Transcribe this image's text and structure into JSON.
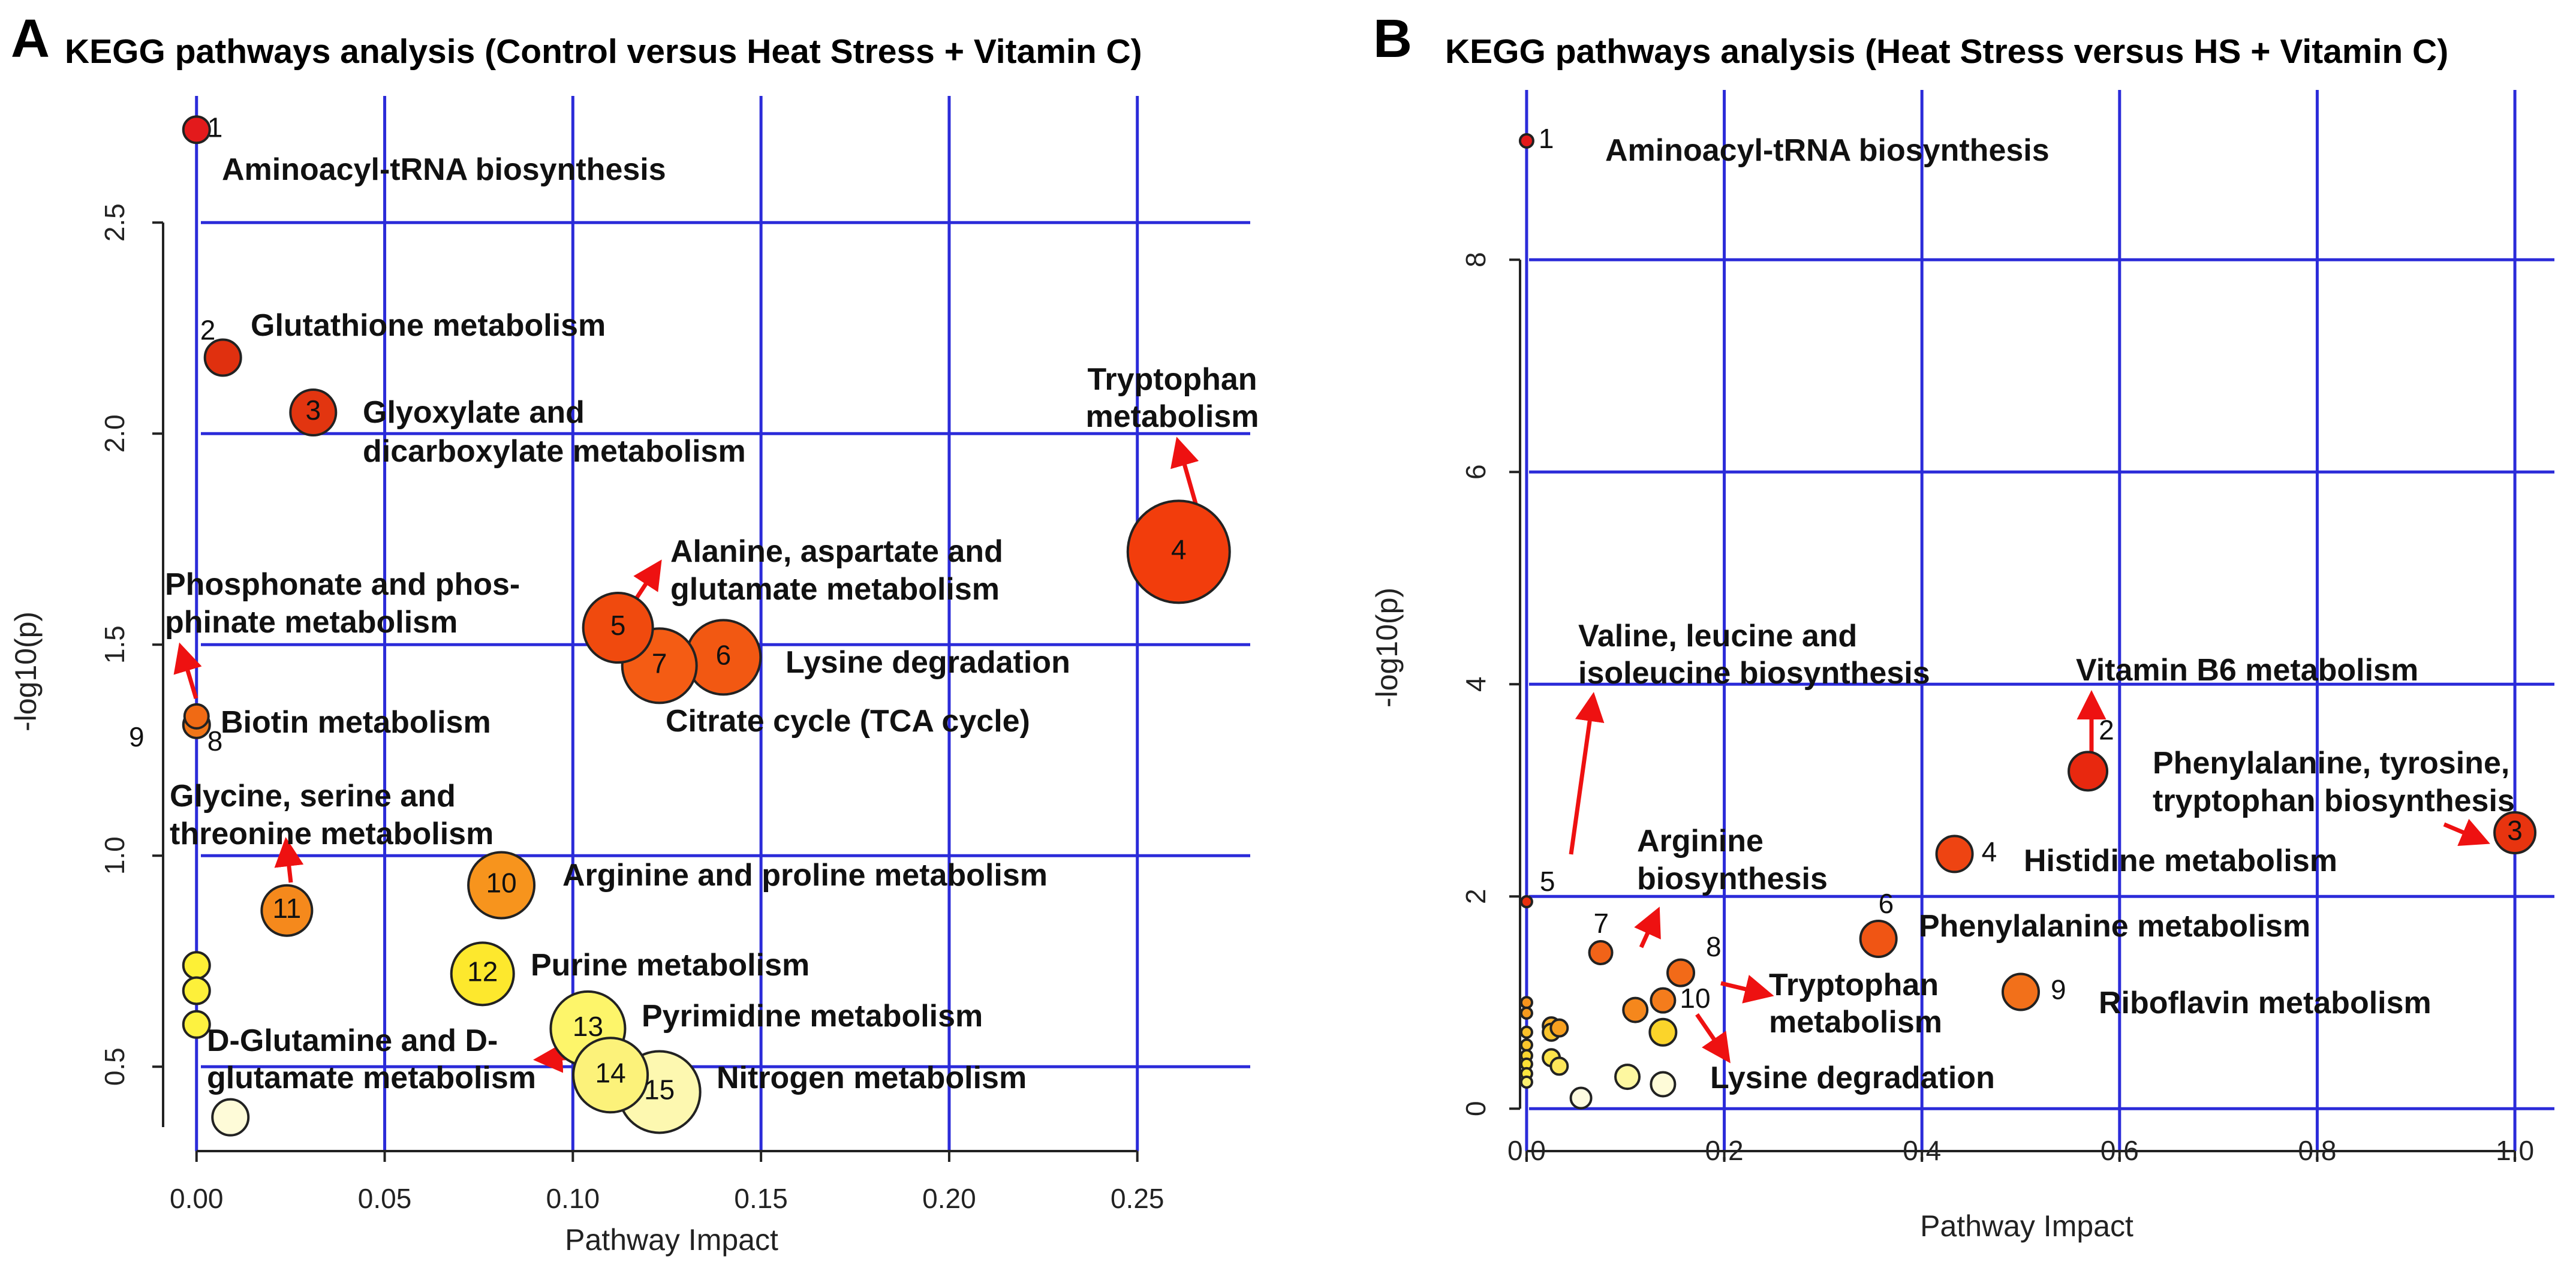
{
  "chart_data": [
    {
      "type": "scatter",
      "panel": "A",
      "title": "KEGG pathways analysis (Control versus Heat Stress + Vitamin C)",
      "xlabel": "Pathway Impact",
      "ylabel": "-log10(p)",
      "xlim": [
        -0.01,
        0.28
      ],
      "ylim": [
        0.3,
        2.8
      ],
      "xticks": [
        0.0,
        0.05,
        0.1,
        0.15,
        0.2,
        0.25
      ],
      "xtick_labels": [
        "0.00",
        "0.05",
        "0.10",
        "0.15",
        "0.20",
        "0.25"
      ],
      "yticks": [
        0.5,
        1.0,
        1.5,
        2.0,
        2.5
      ],
      "ytick_labels": [
        "0.5",
        "1.0",
        "1.5",
        "2.0",
        "2.5"
      ],
      "grid": true,
      "points": [
        {
          "x": 0.0,
          "y": 2.72,
          "r": 22,
          "color": "#e31a1c",
          "number": "1"
        },
        {
          "x": 0.007,
          "y": 2.18,
          "r": 30,
          "color": "#e0300f",
          "number": "2"
        },
        {
          "x": 0.031,
          "y": 2.05,
          "r": 38,
          "color": "#e23510",
          "number": "3"
        },
        {
          "x": 0.261,
          "y": 1.72,
          "r": 85,
          "color": "#f23d0c",
          "number": "4"
        },
        {
          "x": 0.112,
          "y": 1.54,
          "r": 58,
          "color": "#f04a0e",
          "number": "5"
        },
        {
          "x": 0.14,
          "y": 1.47,
          "r": 62,
          "color": "#f25812",
          "number": "6"
        },
        {
          "x": 0.123,
          "y": 1.45,
          "r": 62,
          "color": "#f45c14",
          "number": "7"
        },
        {
          "x": 0.0,
          "y": 1.33,
          "r": 20,
          "color": "#f06a14",
          "number": "8"
        },
        {
          "x": 0.0,
          "y": 1.31,
          "r": 22,
          "color": "#f07518",
          "number": ""
        },
        {
          "x": 0.081,
          "y": 0.93,
          "r": 55,
          "color": "#f7941d",
          "number": "10"
        },
        {
          "x": 0.024,
          "y": 0.87,
          "r": 42,
          "color": "#f5891c",
          "number": "11"
        },
        {
          "x": 0.076,
          "y": 0.72,
          "r": 52,
          "color": "#fde82d",
          "number": "12"
        },
        {
          "x": 0.0,
          "y": 0.74,
          "r": 22,
          "color": "#fdf036",
          "number": ""
        },
        {
          "x": 0.0,
          "y": 0.68,
          "r": 22,
          "color": "#fdf03a",
          "number": ""
        },
        {
          "x": 0.0,
          "y": 0.6,
          "r": 22,
          "color": "#fdf240",
          "number": ""
        },
        {
          "x": 0.104,
          "y": 0.59,
          "r": 62,
          "color": "#fdf56a",
          "number": "13"
        },
        {
          "x": 0.11,
          "y": 0.48,
          "r": 62,
          "color": "#fcf27a",
          "number": "14"
        },
        {
          "x": 0.123,
          "y": 0.44,
          "r": 68,
          "color": "#fdf8b0",
          "number": "15"
        },
        {
          "x": 0.009,
          "y": 0.38,
          "r": 30,
          "color": "#fefbd8",
          "number": ""
        }
      ],
      "annotations": [
        "Aminoacyl-tRNA biosynthesis",
        "Glutathione metabolism",
        "Glyoxylate and",
        "dicarboxylate metabolism",
        "Tryptophan",
        "metabolism",
        "Alanine, aspartate and",
        "glutamate metabolism",
        "Phosphonate and phos-",
        "phinate metabolism",
        "Lysine degradation",
        "Citrate cycle (TCA cycle)",
        "Biotin metabolism",
        "9",
        "Glycine, serine and",
        "threonine metabolism",
        "Arginine and proline metabolism",
        "Purine metabolism",
        "Pyrimidine metabolism",
        "D-Glutamine and D-",
        "glutamate metabolism",
        "Nitrogen metabolism"
      ]
    },
    {
      "type": "scatter",
      "panel": "B",
      "title": "KEGG pathways analysis (Heat Stress versus HS + Vitamin C)",
      "xlabel": "Pathway Impact",
      "ylabel": "-log10(p)",
      "xlim": [
        -0.04,
        1.04
      ],
      "ylim": [
        -0.4,
        9.6
      ],
      "xticks": [
        0.0,
        0.2,
        0.4,
        0.6,
        0.8,
        1.0
      ],
      "xtick_labels": [
        "0.0",
        "0.2",
        "0.4",
        "0.6",
        "0.8",
        "1.0"
      ],
      "yticks": [
        0,
        2,
        4,
        6,
        8
      ],
      "ytick_labels": [
        "0",
        "2",
        "4",
        "6",
        "8"
      ],
      "grid": true,
      "points": [
        {
          "x": 0.0,
          "y": 9.12,
          "r": 11,
          "color": "#e31a1c",
          "number": "1"
        },
        {
          "x": 0.568,
          "y": 3.18,
          "r": 32,
          "color": "#e8280f",
          "number": "2"
        },
        {
          "x": 1.0,
          "y": 2.6,
          "r": 34,
          "color": "#e8340f",
          "number": "3"
        },
        {
          "x": 0.433,
          "y": 2.4,
          "r": 30,
          "color": "#ee4412",
          "number": "4"
        },
        {
          "x": 0.0,
          "y": 1.95,
          "r": 9,
          "color": "#e8300f",
          "number": "5"
        },
        {
          "x": 0.356,
          "y": 1.6,
          "r": 30,
          "color": "#f05514",
          "number": "6"
        },
        {
          "x": 0.075,
          "y": 1.47,
          "r": 19,
          "color": "#f16318",
          "number": "7"
        },
        {
          "x": 0.156,
          "y": 1.28,
          "r": 22,
          "color": "#f26a18",
          "number": "8"
        },
        {
          "x": 0.5,
          "y": 1.1,
          "r": 30,
          "color": "#f2701a",
          "number": "9"
        },
        {
          "x": 0.138,
          "y": 1.02,
          "r": 20,
          "color": "#f47c1c",
          "number": "10"
        },
        {
          "x": 0.11,
          "y": 0.93,
          "r": 20,
          "color": "#f5871c",
          "number": ""
        },
        {
          "x": 0.138,
          "y": 0.72,
          "r": 22,
          "color": "#fbd42a",
          "number": ""
        },
        {
          "x": 0.0,
          "y": 1.0,
          "r": 9,
          "color": "#f7941d",
          "number": ""
        },
        {
          "x": 0.0,
          "y": 0.9,
          "r": 9,
          "color": "#f59a1e",
          "number": ""
        },
        {
          "x": 0.0,
          "y": 0.72,
          "r": 9,
          "color": "#fbc02a",
          "number": ""
        },
        {
          "x": 0.0,
          "y": 0.6,
          "r": 9,
          "color": "#fbc52c",
          "number": ""
        },
        {
          "x": 0.0,
          "y": 0.5,
          "r": 9,
          "color": "#fcd630",
          "number": ""
        },
        {
          "x": 0.0,
          "y": 0.42,
          "r": 9,
          "color": "#fde036",
          "number": ""
        },
        {
          "x": 0.0,
          "y": 0.33,
          "r": 9,
          "color": "#fde640",
          "number": ""
        },
        {
          "x": 0.0,
          "y": 0.25,
          "r": 9,
          "color": "#fdf070",
          "number": ""
        },
        {
          "x": 0.025,
          "y": 0.78,
          "r": 14,
          "color": "#fbb22a",
          "number": ""
        },
        {
          "x": 0.025,
          "y": 0.72,
          "r": 14,
          "color": "#fbc42c",
          "number": ""
        },
        {
          "x": 0.033,
          "y": 0.76,
          "r": 14,
          "color": "#f7a020",
          "number": ""
        },
        {
          "x": 0.025,
          "y": 0.48,
          "r": 14,
          "color": "#fde44a",
          "number": ""
        },
        {
          "x": 0.033,
          "y": 0.4,
          "r": 14,
          "color": "#fde65a",
          "number": ""
        },
        {
          "x": 0.055,
          "y": 0.1,
          "r": 17,
          "color": "#fefbe0",
          "number": ""
        },
        {
          "x": 0.102,
          "y": 0.3,
          "r": 20,
          "color": "#fdf7a0",
          "number": ""
        },
        {
          "x": 0.138,
          "y": 0.23,
          "r": 20,
          "color": "#fefbd8",
          "number": ""
        }
      ],
      "annotations": [
        "Aminoacyl-tRNA biosynthesis",
        "Valine, leucine and",
        "isoleucine biosynthesis",
        "Vitamin B6 metabolism",
        "Phenylalanine, tyrosine,",
        "tryptophan biosynthesis",
        "Histidine metabolism",
        "Arginine",
        "biosynthesis",
        "Phenylalanine metabolism",
        "Tryptophan",
        "metabolism",
        "Riboflavin metabolism",
        "Lysine degradation"
      ]
    }
  ]
}
